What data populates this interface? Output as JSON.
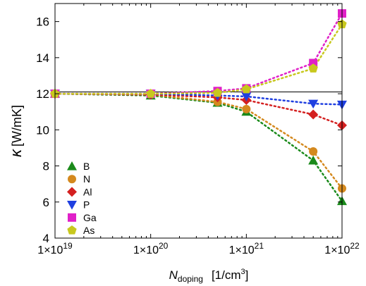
{
  "chart_data": {
    "type": "line",
    "xscale": "log",
    "xlim": [
      1e+19,
      1e+22
    ],
    "ylim": [
      4,
      17
    ],
    "x_ticks": [
      {
        "value": 1e+19,
        "mantissa": "1×10",
        "exp": "19"
      },
      {
        "value": 1e+20,
        "mantissa": "1×10",
        "exp": "20"
      },
      {
        "value": 1e+21,
        "mantissa": "1×10",
        "exp": "21"
      },
      {
        "value": 1e+22,
        "mantissa": "1×10",
        "exp": "22"
      }
    ],
    "y_ticks": [
      4,
      6,
      8,
      10,
      12,
      14,
      16
    ],
    "xlabel": {
      "symbol": "N",
      "subscript": "doping",
      "unit_base": "[1/cm",
      "unit_sup": "3",
      "unit_end": "]"
    },
    "ylabel": {
      "symbol": "κ",
      "unit": "[W/mK]"
    },
    "reference_line": {
      "y": 12.1,
      "color": "#000000"
    },
    "legend_position": "bottom-left",
    "grid": false,
    "series": [
      {
        "name": "B",
        "color": "#1a8a1a",
        "marker": "triangle-up",
        "x": [
          1e+19,
          1e+20,
          5e+20,
          1e+21,
          5e+21,
          1e+22
        ],
        "y": [
          12.0,
          11.9,
          11.5,
          11.0,
          8.3,
          6.05
        ]
      },
      {
        "name": "N",
        "color": "#d4891e",
        "marker": "circle",
        "x": [
          1e+19,
          1e+20,
          5e+20,
          1e+21,
          5e+21,
          1e+22
        ],
        "y": [
          12.0,
          11.95,
          11.55,
          11.15,
          8.8,
          6.75
        ]
      },
      {
        "name": "Al",
        "color": "#d42020",
        "marker": "diamond",
        "x": [
          1e+19,
          1e+20,
          5e+20,
          1e+21,
          5e+21,
          1e+22
        ],
        "y": [
          12.0,
          11.95,
          11.8,
          11.65,
          10.85,
          10.25
        ]
      },
      {
        "name": "P",
        "color": "#1f3fe0",
        "marker": "triangle-down",
        "x": [
          1e+19,
          1e+20,
          5e+20,
          1e+21,
          5e+21,
          1e+22
        ],
        "y": [
          12.0,
          12.0,
          11.9,
          11.85,
          11.45,
          11.4
        ]
      },
      {
        "name": "Ga",
        "color": "#e020c8",
        "marker": "square",
        "x": [
          1e+19,
          1e+20,
          5e+20,
          1e+21,
          5e+21,
          1e+22
        ],
        "y": [
          12.0,
          12.0,
          12.15,
          12.3,
          13.7,
          16.45
        ]
      },
      {
        "name": "As",
        "color": "#c8c81e",
        "marker": "pentagon",
        "x": [
          1e+19,
          1e+20,
          5e+20,
          1e+21,
          5e+21,
          1e+22
        ],
        "y": [
          12.0,
          12.0,
          12.05,
          12.25,
          13.4,
          15.85
        ]
      }
    ]
  }
}
